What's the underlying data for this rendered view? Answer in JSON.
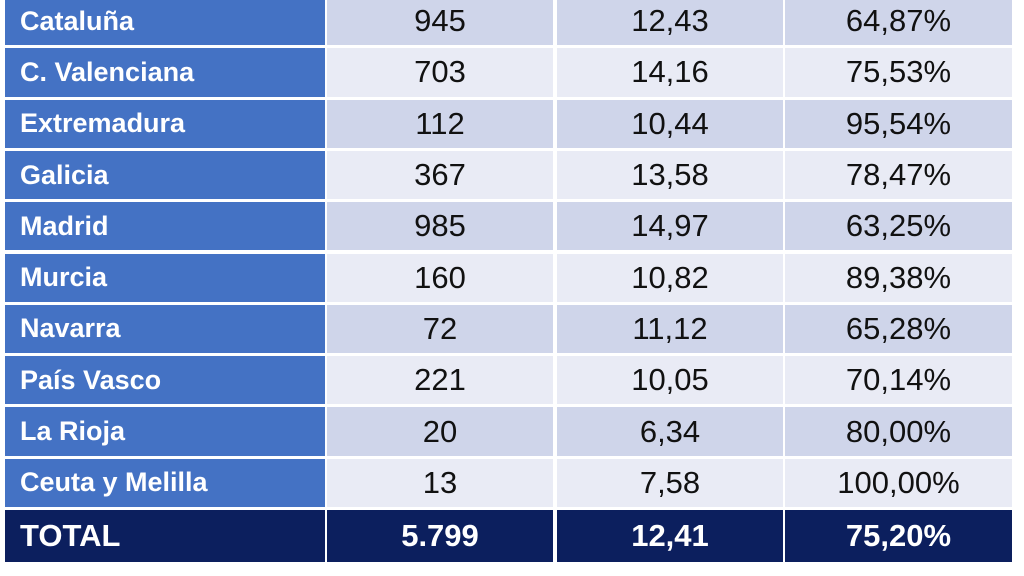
{
  "table": {
    "rows": [
      [
        "Cataluña",
        "945",
        "12,43",
        "64,87%"
      ],
      [
        "C. Valenciana",
        "703",
        "14,16",
        "75,53%"
      ],
      [
        "Extremadura",
        "112",
        "10,44",
        "95,54%"
      ],
      [
        "Galicia",
        "367",
        "13,58",
        "78,47%"
      ],
      [
        "Madrid",
        "985",
        "14,97",
        "63,25%"
      ],
      [
        "Murcia",
        "160",
        "10,82",
        "89,38%"
      ],
      [
        "Navarra",
        "72",
        "11,12",
        "65,28%"
      ],
      [
        "País Vasco",
        "221",
        "10,05",
        "70,14%"
      ],
      [
        "La Rioja",
        "20",
        "6,34",
        "80,00%"
      ],
      [
        "Ceuta y Melilla",
        "13",
        "7,58",
        "100,00%"
      ]
    ],
    "total": [
      "TOTAL",
      "5.799",
      "12,41",
      "75,20%"
    ]
  }
}
